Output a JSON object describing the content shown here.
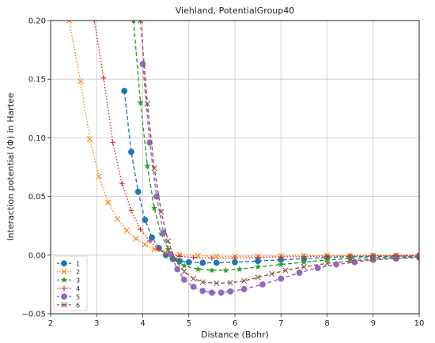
{
  "chart_data": {
    "type": "line",
    "title": "Viehland, PotentialGroup40",
    "xlabel": "Distance (Bohr)",
    "ylabel": "Interaction potential (Φ) in Hartee",
    "xlim": [
      2,
      10
    ],
    "ylim": [
      -0.05,
      0.2
    ],
    "xticks": [
      "2",
      "3",
      "4",
      "5",
      "6",
      "7",
      "8",
      "9",
      "10"
    ],
    "yticks": [
      "−0.05",
      "0.00",
      "0.05",
      "0.10",
      "0.15",
      "0.20"
    ],
    "grid": true,
    "legend_position": "bottom-left",
    "series": [
      {
        "name": "1",
        "color": "#1f77b4",
        "dash": "dashed",
        "marker": "circle",
        "x": [
          3.6,
          3.75,
          3.9,
          4.05,
          4.2,
          4.35,
          4.5,
          4.65,
          4.8,
          5.0,
          5.3,
          5.6,
          6.0,
          6.5,
          7.0,
          7.5,
          8.0,
          8.5,
          9.0,
          9.5,
          10.0
        ],
        "y": [
          0.14,
          0.088,
          0.054,
          0.03,
          0.015,
          0.006,
          0.0,
          -0.003,
          -0.005,
          -0.006,
          -0.0065,
          -0.0065,
          -0.006,
          -0.005,
          -0.004,
          -0.003,
          -0.002,
          -0.0015,
          -0.001,
          -0.001,
          -0.0005
        ]
      },
      {
        "name": "2",
        "color": "#ff7f0e",
        "dash": "dotted",
        "marker": "x",
        "x": [
          2.4,
          2.65,
          2.85,
          3.05,
          3.25,
          3.45,
          3.65,
          3.85,
          4.05,
          4.25,
          4.5,
          4.8,
          5.2,
          5.6,
          6.0,
          6.5,
          7.0,
          7.5,
          8.0,
          8.5,
          9.0,
          9.5,
          10.0
        ],
        "y": [
          0.2,
          0.148,
          0.099,
          0.067,
          0.045,
          0.031,
          0.021,
          0.014,
          0.009,
          0.005,
          0.002,
          0.0005,
          -0.0005,
          -0.001,
          -0.001,
          -0.0008,
          -0.0006,
          -0.0004,
          -0.0003,
          -0.0002,
          -0.0001,
          -0.0001,
          0.0
        ]
      },
      {
        "name": "3",
        "color": "#2ca02c",
        "dash": "dashed",
        "marker": "star",
        "x": [
          3.8,
          3.95,
          4.1,
          4.25,
          4.4,
          4.55,
          4.7,
          4.9,
          5.2,
          5.5,
          5.8,
          6.1,
          6.5,
          7.0,
          7.5,
          8.0,
          8.5,
          9.0,
          9.5,
          10.0
        ],
        "y": [
          0.2,
          0.13,
          0.076,
          0.04,
          0.018,
          0.005,
          -0.004,
          -0.009,
          -0.012,
          -0.013,
          -0.013,
          -0.012,
          -0.01,
          -0.008,
          -0.006,
          -0.004,
          -0.003,
          -0.002,
          -0.0015,
          -0.001
        ]
      },
      {
        "name": "4",
        "color": "#d62728",
        "dash": "dotted",
        "marker": "plus",
        "x": [
          2.95,
          3.15,
          3.35,
          3.55,
          3.75,
          3.95,
          4.15,
          4.35,
          4.55,
          4.8,
          5.1,
          5.5,
          6.0,
          6.5,
          7.0,
          7.5,
          8.0,
          8.5,
          9.0,
          9.5,
          10.0
        ],
        "y": [
          0.2,
          0.151,
          0.096,
          0.061,
          0.038,
          0.022,
          0.012,
          0.005,
          0.001,
          -0.001,
          -0.002,
          -0.0025,
          -0.0025,
          -0.002,
          -0.0015,
          -0.0012,
          -0.001,
          -0.0008,
          -0.0006,
          -0.0004,
          -0.0003
        ]
      },
      {
        "name": "5",
        "color": "#9467bd",
        "dash": "dashed",
        "marker": "circle",
        "x": [
          4.0,
          4.15,
          4.3,
          4.45,
          4.6,
          4.75,
          4.9,
          5.1,
          5.3,
          5.5,
          5.7,
          5.9,
          6.2,
          6.6,
          7.0,
          7.4,
          7.8,
          8.2,
          8.6,
          9.0,
          9.5,
          10.0
        ],
        "y": [
          0.163,
          0.096,
          0.05,
          0.019,
          0.001,
          -0.012,
          -0.021,
          -0.027,
          -0.0305,
          -0.032,
          -0.032,
          -0.031,
          -0.029,
          -0.025,
          -0.02,
          -0.015,
          -0.011,
          -0.008,
          -0.006,
          -0.004,
          -0.003,
          -0.002
        ]
      },
      {
        "name": "6",
        "color": "#8c564b",
        "dash": "dashed",
        "marker": "x",
        "x": [
          3.95,
          4.1,
          4.25,
          4.4,
          4.55,
          4.7,
          4.9,
          5.1,
          5.3,
          5.6,
          5.9,
          6.2,
          6.5,
          6.8,
          7.1,
          7.5,
          8.0,
          8.5,
          9.0,
          9.5,
          10.0
        ],
        "y": [
          0.2,
          0.129,
          0.074,
          0.037,
          0.012,
          -0.004,
          -0.014,
          -0.02,
          -0.023,
          -0.024,
          -0.0235,
          -0.022,
          -0.019,
          -0.016,
          -0.013,
          -0.01,
          -0.007,
          -0.005,
          -0.0035,
          -0.0025,
          -0.0015
        ]
      }
    ]
  }
}
